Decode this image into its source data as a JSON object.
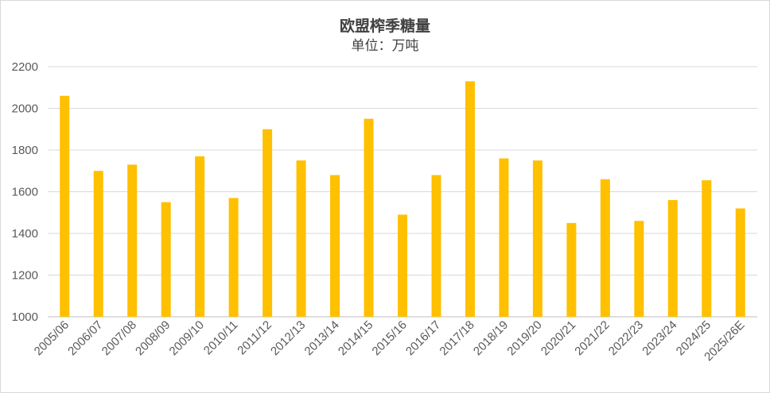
{
  "chart_data": {
    "type": "bar",
    "title": "欧盟榨季糖量",
    "subtitle": "单位：万吨",
    "xlabel": "",
    "ylabel": "",
    "ylim": [
      1000,
      2200
    ],
    "yticks": [
      1000,
      1200,
      1400,
      1600,
      1800,
      2000,
      2200
    ],
    "grid": true,
    "legend": "none",
    "bar_color": "#FFC000",
    "categories": [
      "2005/06",
      "2006/07",
      "2007/08",
      "2008/09",
      "2009/10",
      "2010/11",
      "2011/12",
      "2012/13",
      "2013/14",
      "2014/15",
      "2015/16",
      "2016/17",
      "2017/18",
      "2018/19",
      "2019/20",
      "2020/21",
      "2021/22",
      "2022/23",
      "2023/24",
      "2024/25",
      "2025/26E"
    ],
    "values": [
      2060,
      1700,
      1730,
      1550,
      1770,
      1570,
      1900,
      1750,
      1680,
      1950,
      1490,
      1680,
      2130,
      1760,
      1750,
      1450,
      1660,
      1460,
      1560,
      1655,
      1520
    ]
  }
}
